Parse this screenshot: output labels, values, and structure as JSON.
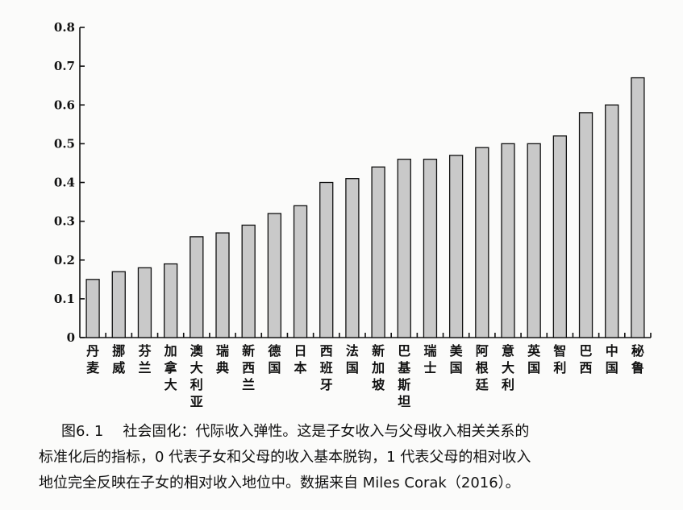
{
  "chart_data": {
    "type": "bar",
    "categories": [
      "丹麦",
      "挪威",
      "芬兰",
      "加拿大",
      "澳大利亚",
      "瑞典",
      "新西兰",
      "德国",
      "日本",
      "西班牙",
      "法国",
      "新加坡",
      "巴基斯坦",
      "瑞士",
      "美国",
      "阿根廷",
      "意大利",
      "英国",
      "智利",
      "巴西",
      "中国",
      "秘鲁"
    ],
    "values": [
      0.15,
      0.17,
      0.18,
      0.19,
      0.26,
      0.27,
      0.29,
      0.32,
      0.34,
      0.4,
      0.41,
      0.44,
      0.46,
      0.46,
      0.47,
      0.49,
      0.5,
      0.5,
      0.52,
      0.58,
      0.6,
      0.67
    ],
    "ylim": [
      0,
      0.8
    ],
    "yticks": [
      "0",
      "0.1",
      "0.2",
      "0.3",
      "0.4",
      "0.5",
      "0.6",
      "0.7",
      "0.8"
    ],
    "grid": false,
    "bar_color": "#c9c9c9",
    "edge_color": "#111111"
  },
  "caption": {
    "figure_number": "图6. 1",
    "line1": "社会固化：代际收入弹性。这是子女收入与父母收入相关关系的",
    "line2": "标准化后的指标，0 代表子女和父母的收入基本脱钩，1 代表父母的相对收入",
    "line3": "地位完全反映在子女的相对收入地位中。数据来自 Miles Corak（2016）。"
  }
}
